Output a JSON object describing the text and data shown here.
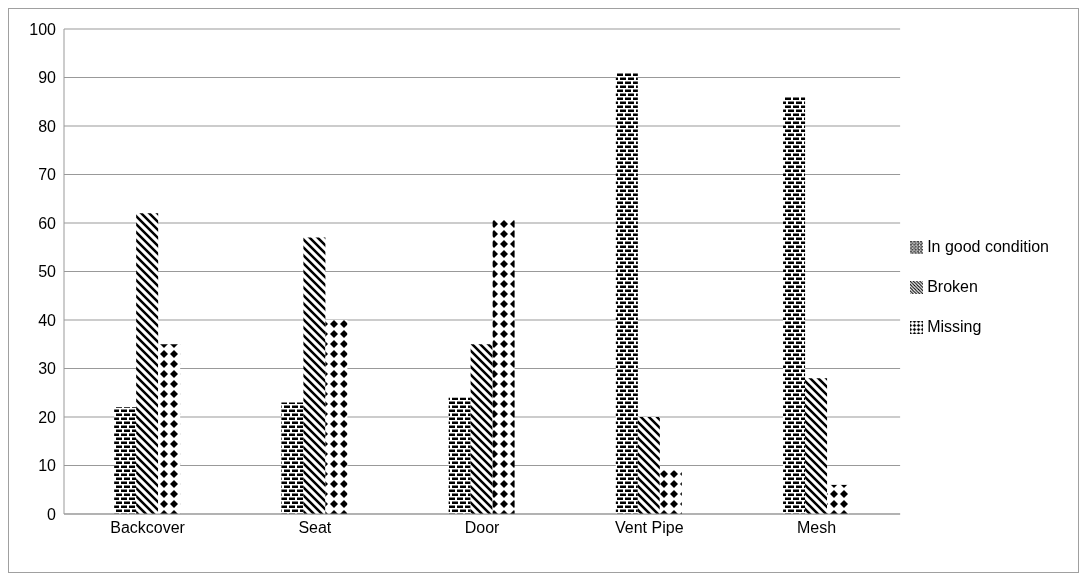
{
  "chart_data": {
    "type": "bar",
    "categories": [
      "Backcover",
      "Seat",
      "Door",
      "Vent Pipe",
      "Mesh"
    ],
    "series": [
      {
        "name": "In good condition",
        "color": "#000000",
        "values": [
          22,
          23,
          24,
          91,
          86
        ]
      },
      {
        "name": "Broken",
        "color": "#000000",
        "values": [
          62,
          57,
          35,
          20,
          28
        ]
      },
      {
        "name": "Missing",
        "color": "#000000",
        "values": [
          35,
          40,
          61,
          9,
          6
        ]
      }
    ],
    "ylim": [
      0,
      100
    ],
    "yticks": [
      0,
      10,
      20,
      30,
      40,
      50,
      60,
      70,
      80,
      90,
      100
    ],
    "grid": "y",
    "legend": "right"
  }
}
